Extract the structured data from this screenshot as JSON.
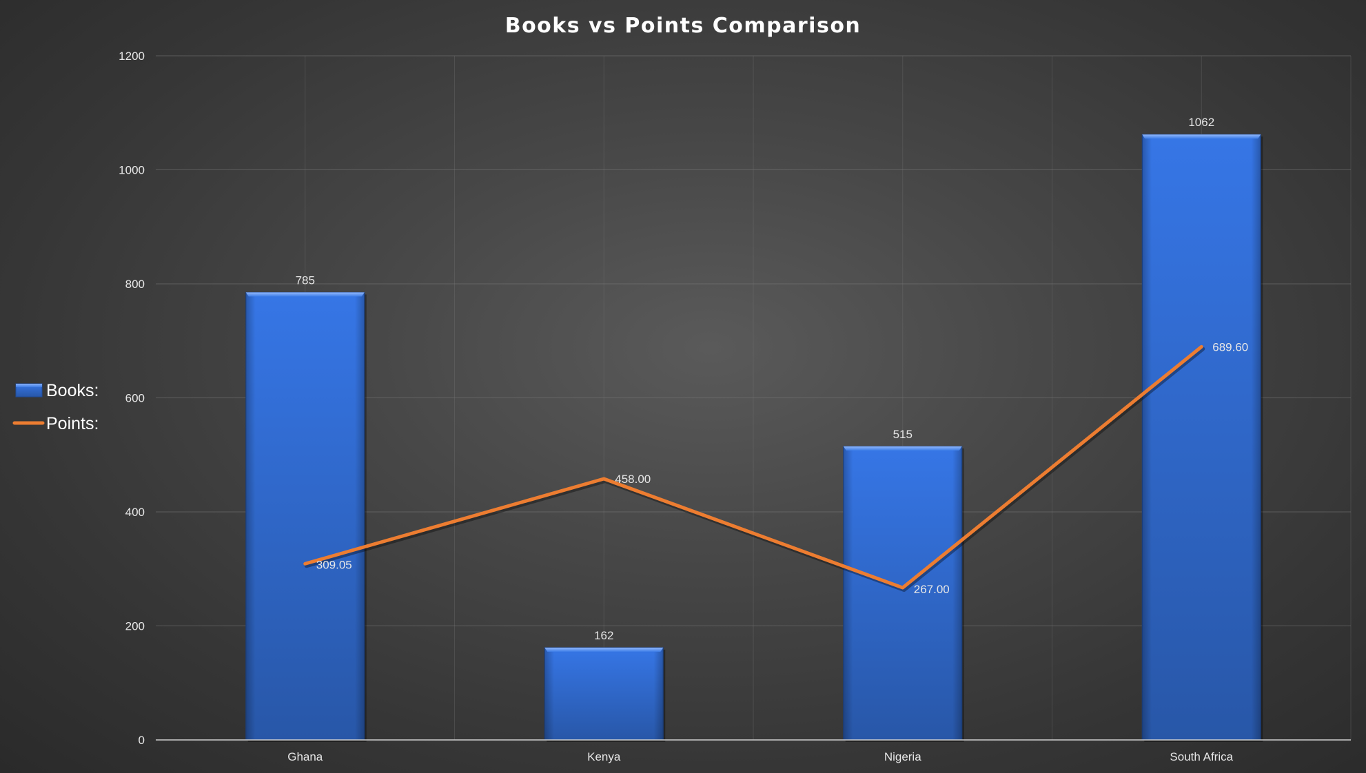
{
  "chart_data": {
    "type": "bar",
    "title": "Books vs Points Comparison",
    "xlabel": "",
    "ylabel": "",
    "categories": [
      "Ghana",
      "Kenya",
      "Nigeria",
      "South Africa"
    ],
    "ylim": [
      0,
      1200
    ],
    "yticks": [
      0,
      200,
      400,
      600,
      800,
      1000,
      1200
    ],
    "grid": true,
    "legend_position": "left",
    "series": [
      {
        "name": "Books:",
        "type": "bar",
        "color": "#2f6fdc",
        "values": [
          785,
          162,
          515,
          1062
        ],
        "labels": [
          "785",
          "162",
          "515",
          "1062"
        ]
      },
      {
        "name": "Points:",
        "type": "line",
        "color": "#ed7d31",
        "values": [
          309.05,
          458.0,
          267.0,
          689.6
        ],
        "labels": [
          "309.05",
          "458.00",
          "267.00",
          "689.60"
        ]
      }
    ]
  }
}
